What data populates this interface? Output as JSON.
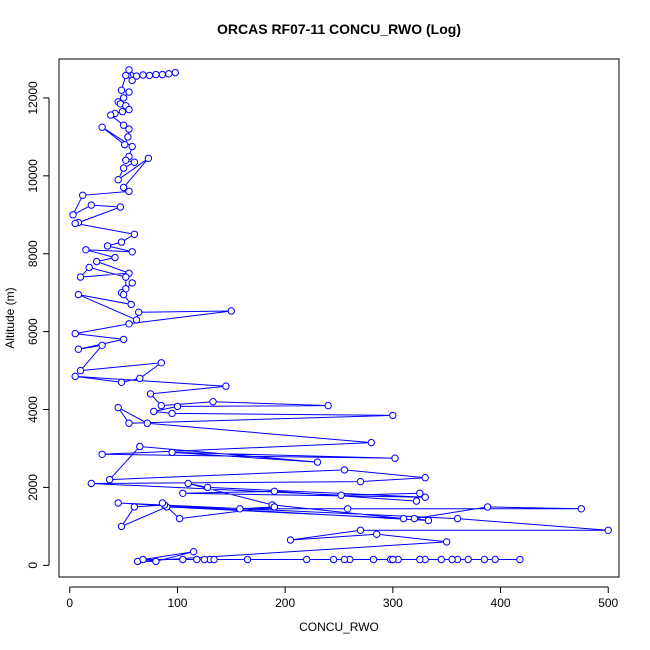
{
  "chart_data": {
    "type": "line",
    "title": "ORCAS RF07-11 CONCU_RWO (Log)",
    "xlabel": "CONCU_RWO",
    "ylabel": "Altitude (m)",
    "xlim": [
      -10,
      510
    ],
    "ylim": [
      -300,
      13000
    ],
    "x_ticks": [
      0,
      100,
      200,
      300,
      400,
      500
    ],
    "y_ticks": [
      0,
      2000,
      4000,
      6000,
      8000,
      10000,
      12000
    ],
    "grid": false,
    "series_color": "#0000ff",
    "series": [
      {
        "marker": "open-circle",
        "x": [
          98,
          92,
          86,
          80,
          74,
          68,
          62,
          55,
          58,
          52,
          48,
          55,
          50,
          45,
          47,
          52,
          55,
          49,
          42,
          38,
          50,
          55,
          54,
          51,
          30,
          58,
          55,
          52,
          60,
          50,
          45,
          73,
          50,
          55,
          12,
          3,
          20,
          47,
          8,
          5,
          60,
          48,
          35,
          58,
          15,
          42,
          25,
          55,
          10,
          18,
          52,
          52,
          58,
          48,
          50,
          57,
          8,
          62,
          64,
          150,
          55,
          5,
          50,
          8,
          30,
          10,
          85,
          65,
          48,
          5,
          145,
          75,
          85,
          133,
          240,
          100,
          78,
          95,
          300,
          55,
          45,
          72,
          280,
          30,
          302,
          95,
          230,
          65,
          37,
          255,
          330,
          270,
          20,
          252,
          325,
          322,
          190,
          105,
          330,
          128,
          110,
          188,
          310,
          90,
          48,
          60,
          88,
          86,
          102,
          190,
          158,
          258,
          475,
          388,
          320,
          333,
          45,
          360,
          500,
          270,
          205,
          285,
          350,
          63,
          80,
          115,
          68,
          165,
          118,
          345,
          105,
          220,
          300,
          330,
          360,
          395,
          418,
          130,
          245,
          260,
          305,
          325,
          282,
          355,
          298,
          370,
          385,
          125,
          134,
          255,
          300
        ],
        "y": [
          12650,
          12620,
          12600,
          12600,
          12580,
          12590,
          12560,
          12720,
          12450,
          12580,
          12200,
          12150,
          12000,
          11900,
          11850,
          11800,
          11700,
          11650,
          11600,
          11560,
          11300,
          11200,
          11000,
          10800,
          11250,
          10750,
          10500,
          10400,
          10350,
          10200,
          9900,
          10450,
          9700,
          9600,
          9500,
          9000,
          9250,
          9200,
          8800,
          8780,
          8500,
          8300,
          8200,
          8050,
          8100,
          7900,
          7800,
          7500,
          7400,
          7650,
          7400,
          7100,
          7250,
          7000,
          6950,
          6700,
          6950,
          6300,
          6500,
          6530,
          6200,
          5950,
          5800,
          5550,
          5650,
          5000,
          5200,
          4800,
          4700,
          4850,
          4600,
          4400,
          4100,
          4200,
          4100,
          4080,
          3950,
          3900,
          3850,
          3650,
          4050,
          3650,
          3150,
          2850,
          2750,
          2900,
          2650,
          3050,
          2200,
          2450,
          2250,
          2150,
          2100,
          1800,
          1850,
          1650,
          1900,
          1850,
          1750,
          2000,
          2100,
          1550,
          1200,
          1500,
          1000,
          1500,
          1550,
          1600,
          1200,
          1500,
          1450,
          1450,
          1450,
          1500,
          1200,
          1150,
          1600,
          1200,
          900,
          900,
          650,
          800,
          600,
          100,
          100,
          350,
          150,
          150,
          150,
          150,
          150,
          150,
          150,
          150,
          150,
          150,
          150,
          150,
          150,
          150,
          150,
          150,
          150,
          150,
          150,
          150,
          150,
          150,
          150,
          150,
          150
        ]
      }
    ]
  }
}
